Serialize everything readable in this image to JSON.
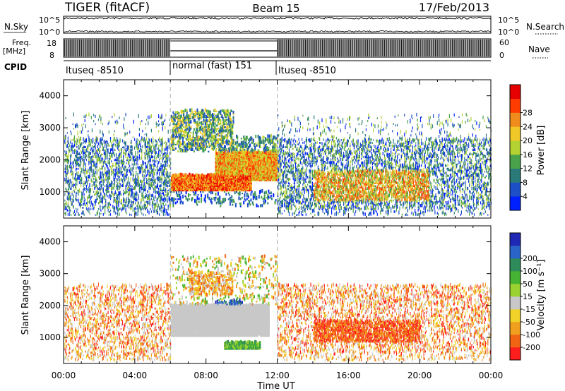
{
  "header": {
    "radar": "TIGER (fitACF)",
    "beam": "Beam 15",
    "date": "17/Feb/2013"
  },
  "top_panels": {
    "nsky_label": "N.Sky",
    "nsky_ticks": [
      "10^5",
      "10^0"
    ],
    "nsearch_label": "N.Search",
    "nsearch_ticks": [
      "10^5",
      "10^0"
    ],
    "freq_label_1": "Freq.",
    "freq_label_2": "[MHz]",
    "freq_ticks": [
      "18",
      "8"
    ],
    "nave_label": "Nave",
    "nave_ticks": [
      "60",
      "0"
    ],
    "cpid_label": "CPID",
    "cpid_segments": [
      {
        "label": "ltuseq -8510",
        "start": 0,
        "end": 6
      },
      {
        "label": "normal (fast) 151",
        "start": 6,
        "end": 12
      },
      {
        "label": "ltuseq -8510",
        "start": 12,
        "end": 24
      }
    ]
  },
  "chart_data": [
    {
      "type": "heatmap",
      "panel": "power",
      "xlabel": "",
      "ylabel": "Slant Range [km]",
      "xlim": [
        0,
        24
      ],
      "ylim": [
        180,
        4500
      ],
      "yticks": [
        1000,
        2000,
        3000,
        4000
      ],
      "colorbar": {
        "label": "Power [dB]",
        "range": [
          0,
          32
        ],
        "ticks": [
          "4",
          "8",
          "12",
          "16",
          "20",
          "24",
          "28"
        ],
        "colors": [
          "#0020ff",
          "#1c4fc8",
          "#2a7a7a",
          "#4aa24a",
          "#b4d232",
          "#f0c828",
          "#f08c1e",
          "#ff3c00",
          "#e60000"
        ]
      },
      "regions": [
        {
          "t0": 0.0,
          "t1": 6.0,
          "r0": 400,
          "r1": 2600,
          "level": "low-mid"
        },
        {
          "t0": 6.0,
          "t1": 12.0,
          "r0": 1000,
          "r1": 2200,
          "level": "high"
        },
        {
          "t0": 6.0,
          "t1": 9.5,
          "r0": 2300,
          "r1": 3500,
          "level": "mid"
        },
        {
          "t0": 14.0,
          "t1": 20.0,
          "r0": 700,
          "r1": 1600,
          "level": "mid-high"
        },
        {
          "t0": 12.0,
          "t1": 24.0,
          "r0": 1300,
          "r1": 2600,
          "level": "low"
        }
      ]
    },
    {
      "type": "heatmap",
      "panel": "velocity",
      "xlabel": "Time UT",
      "ylabel": "Slant Range [km]",
      "xlim": [
        0,
        24
      ],
      "ylim": [
        180,
        4500
      ],
      "xticks": [
        "00:00",
        "04:00",
        "08:00",
        "12:00",
        "16:00",
        "20:00",
        "00:00"
      ],
      "yticks": [
        1000,
        2000,
        3000,
        4000
      ],
      "colorbar": {
        "label": "Velocity [m s⁻¹]",
        "ticks": [
          "200",
          "100",
          "50",
          "15",
          "-15",
          "-50",
          "-100",
          "-200"
        ],
        "colors": [
          "#1e28b4",
          "#2a64c8",
          "#2e8c5a",
          "#46b432",
          "#9ad232",
          "#c8c8c8",
          "#f0d228",
          "#f0a01e",
          "#f06414",
          "#ff1e1e"
        ]
      },
      "regions": [
        {
          "t0": 6.0,
          "t1": 11.5,
          "r0": 1000,
          "r1": 2000,
          "level": "ground scatter"
        },
        {
          "t0": 14.0,
          "t1": 20.0,
          "r0": 800,
          "r1": 1500,
          "level": "-100 to -200"
        },
        {
          "t0": 9.0,
          "t1": 11.0,
          "r0": 600,
          "r1": 800,
          "level": "15 to 100"
        }
      ]
    }
  ]
}
